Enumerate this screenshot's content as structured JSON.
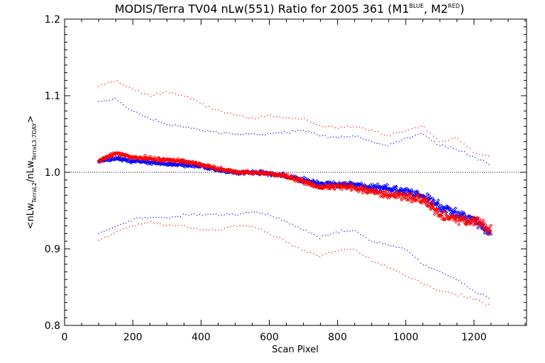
{
  "chart_data": {
    "type": "scatter",
    "title": {
      "prefix": "MODIS/Terra TV04 nLw(551) Ratio for 2005 361 (M1",
      "sup1": "BLUE",
      "mid": ", M2",
      "sup2": "RED",
      "suffix": ")"
    },
    "xlabel": "Scan Pixel",
    "ylabel": {
      "open": "<nLw",
      "sub1": "TerraL2",
      "slash": "/nLw",
      "sub2": "TerraL3:7DAY",
      "close": ">"
    },
    "xlim": [
      0,
      1354
    ],
    "ylim": [
      0.8,
      1.2
    ],
    "xticks": [
      0,
      200,
      400,
      600,
      800,
      1000,
      1200
    ],
    "xtick_labels": [
      "0",
      "200",
      "400",
      "600",
      "800",
      "1000",
      "1200"
    ],
    "yticks": [
      0.8,
      0.9,
      1.0,
      1.1,
      1.2
    ],
    "ytick_labels": [
      "0.8",
      "0.9",
      "1.0",
      "1.1",
      "1.2"
    ],
    "reference_line": 1.0,
    "x_range": [
      100,
      1250
    ],
    "series": [
      {
        "color": "#0000ff",
        "marker": "diamond",
        "mean": [
          [
            100,
            1.015
          ],
          [
            150,
            1.018
          ],
          [
            200,
            1.015
          ],
          [
            250,
            1.013
          ],
          [
            300,
            1.011
          ],
          [
            350,
            1.01
          ],
          [
            400,
            1.008
          ],
          [
            450,
            1.003
          ],
          [
            500,
            1.0
          ],
          [
            550,
            1.0
          ],
          [
            600,
            0.998
          ],
          [
            650,
            0.995
          ],
          [
            700,
            0.99
          ],
          [
            750,
            0.985
          ],
          [
            800,
            0.984
          ],
          [
            850,
            0.983
          ],
          [
            900,
            0.98
          ],
          [
            950,
            0.978
          ],
          [
            1000,
            0.975
          ],
          [
            1050,
            0.97
          ],
          [
            1100,
            0.955
          ],
          [
            1150,
            0.945
          ],
          [
            1200,
            0.938
          ],
          [
            1250,
            0.918
          ]
        ],
        "upper": [
          [
            100,
            1.093
          ],
          [
            150,
            1.095
          ],
          [
            200,
            1.08
          ],
          [
            250,
            1.07
          ],
          [
            300,
            1.063
          ],
          [
            350,
            1.06
          ],
          [
            400,
            1.055
          ],
          [
            450,
            1.052
          ],
          [
            500,
            1.05
          ],
          [
            550,
            1.05
          ],
          [
            600,
            1.05
          ],
          [
            650,
            1.052
          ],
          [
            700,
            1.055
          ],
          [
            750,
            1.048
          ],
          [
            800,
            1.045
          ],
          [
            850,
            1.048
          ],
          [
            900,
            1.04
          ],
          [
            950,
            1.035
          ],
          [
            1000,
            1.045
          ],
          [
            1050,
            1.05
          ],
          [
            1100,
            1.035
          ],
          [
            1150,
            1.03
          ],
          [
            1200,
            1.02
          ],
          [
            1250,
            1.01
          ]
        ],
        "lower": [
          [
            100,
            0.92
          ],
          [
            150,
            0.93
          ],
          [
            200,
            0.938
          ],
          [
            250,
            0.942
          ],
          [
            300,
            0.94
          ],
          [
            350,
            0.945
          ],
          [
            400,
            0.945
          ],
          [
            450,
            0.945
          ],
          [
            500,
            0.945
          ],
          [
            550,
            0.948
          ],
          [
            600,
            0.945
          ],
          [
            650,
            0.935
          ],
          [
            700,
            0.925
          ],
          [
            750,
            0.915
          ],
          [
            800,
            0.922
          ],
          [
            850,
            0.925
          ],
          [
            900,
            0.91
          ],
          [
            950,
            0.905
          ],
          [
            1000,
            0.9
          ],
          [
            1050,
            0.88
          ],
          [
            1100,
            0.87
          ],
          [
            1150,
            0.86
          ],
          [
            1200,
            0.845
          ],
          [
            1250,
            0.835
          ]
        ]
      },
      {
        "color": "#ff0000",
        "marker": "diamond",
        "mean": [
          [
            100,
            1.015
          ],
          [
            150,
            1.025
          ],
          [
            200,
            1.02
          ],
          [
            250,
            1.018
          ],
          [
            300,
            1.016
          ],
          [
            350,
            1.015
          ],
          [
            400,
            1.01
          ],
          [
            450,
            1.005
          ],
          [
            500,
            1.0
          ],
          [
            550,
            1.0
          ],
          [
            600,
            0.998
          ],
          [
            650,
            0.995
          ],
          [
            700,
            0.988
          ],
          [
            750,
            0.98
          ],
          [
            800,
            0.982
          ],
          [
            850,
            0.98
          ],
          [
            900,
            0.975
          ],
          [
            950,
            0.97
          ],
          [
            1000,
            0.968
          ],
          [
            1050,
            0.965
          ],
          [
            1100,
            0.945
          ],
          [
            1150,
            0.94
          ],
          [
            1200,
            0.935
          ],
          [
            1250,
            0.925
          ]
        ],
        "upper": [
          [
            100,
            1.113
          ],
          [
            150,
            1.12
          ],
          [
            200,
            1.108
          ],
          [
            250,
            1.1
          ],
          [
            300,
            1.105
          ],
          [
            350,
            1.1
          ],
          [
            400,
            1.09
          ],
          [
            450,
            1.08
          ],
          [
            500,
            1.075
          ],
          [
            550,
            1.07
          ],
          [
            600,
            1.075
          ],
          [
            650,
            1.07
          ],
          [
            700,
            1.07
          ],
          [
            750,
            1.06
          ],
          [
            800,
            1.058
          ],
          [
            850,
            1.06
          ],
          [
            900,
            1.055
          ],
          [
            950,
            1.048
          ],
          [
            1000,
            1.055
          ],
          [
            1050,
            1.06
          ],
          [
            1100,
            1.04
          ],
          [
            1150,
            1.045
          ],
          [
            1200,
            1.025
          ],
          [
            1250,
            1.02
          ]
        ],
        "lower": [
          [
            100,
            0.912
          ],
          [
            150,
            0.922
          ],
          [
            200,
            0.93
          ],
          [
            250,
            0.935
          ],
          [
            300,
            0.93
          ],
          [
            350,
            0.93
          ],
          [
            400,
            0.925
          ],
          [
            450,
            0.925
          ],
          [
            500,
            0.93
          ],
          [
            550,
            0.93
          ],
          [
            600,
            0.92
          ],
          [
            650,
            0.91
          ],
          [
            700,
            0.898
          ],
          [
            750,
            0.89
          ],
          [
            800,
            0.898
          ],
          [
            850,
            0.9
          ],
          [
            900,
            0.885
          ],
          [
            950,
            0.875
          ],
          [
            1000,
            0.865
          ],
          [
            1050,
            0.855
          ],
          [
            1100,
            0.845
          ],
          [
            1150,
            0.84
          ],
          [
            1200,
            0.835
          ],
          [
            1250,
            0.825
          ]
        ]
      }
    ]
  }
}
